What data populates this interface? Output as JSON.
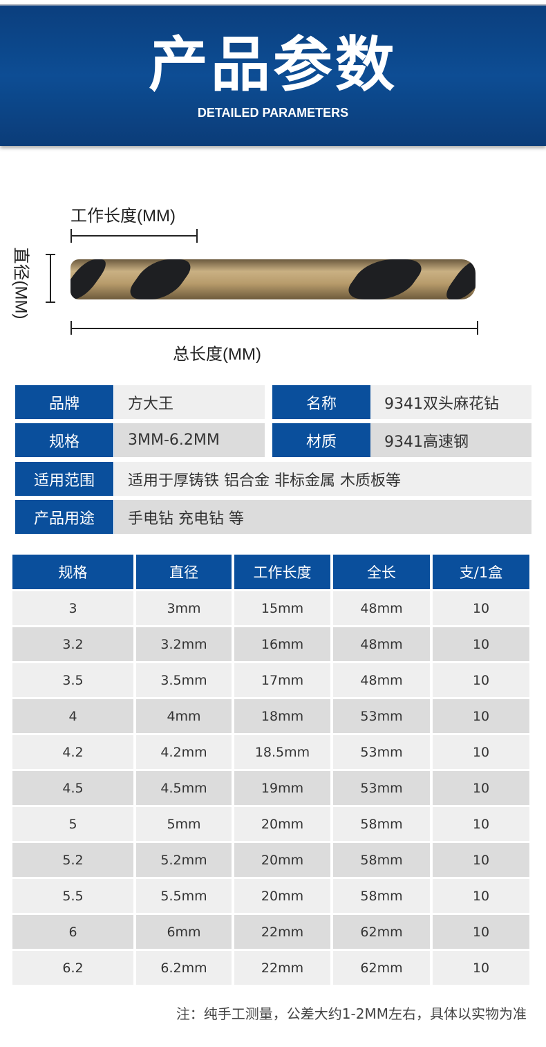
{
  "header": {
    "title": "产品参数",
    "subtitle": "DETAILED PARAMETERS"
  },
  "diagram": {
    "working_length": "工作长度(MM)",
    "diameter": "直径(MM)",
    "total_length": "总长度(MM)"
  },
  "params": [
    {
      "label": "品牌",
      "value": "方大王",
      "label2": "名称",
      "value2": "9341双头麻花钻"
    },
    {
      "label": "规格",
      "value": "3MM-6.2MM",
      "label2": "材质",
      "value2": "9341高速钢"
    },
    {
      "label": "适用范围",
      "value": "适用于厚铸铁 铝合金 非标金属 木质板等"
    },
    {
      "label": "产品用途",
      "value": "手电钻 充电钻 等"
    }
  ],
  "table": {
    "headers": [
      "规格",
      "直径",
      "工作长度",
      "全长",
      "支/1盒"
    ],
    "rows": [
      [
        "3",
        "3mm",
        "15mm",
        "48mm",
        "10"
      ],
      [
        "3.2",
        "3.2mm",
        "16mm",
        "48mm",
        "10"
      ],
      [
        "3.5",
        "3.5mm",
        "17mm",
        "48mm",
        "10"
      ],
      [
        "4",
        "4mm",
        "18mm",
        "53mm",
        "10"
      ],
      [
        "4.2",
        "4.2mm",
        "18.5mm",
        "53mm",
        "10"
      ],
      [
        "4.5",
        "4.5mm",
        "19mm",
        "53mm",
        "10"
      ],
      [
        "5",
        "5mm",
        "20mm",
        "58mm",
        "10"
      ],
      [
        "5.2",
        "5.2mm",
        "20mm",
        "58mm",
        "10"
      ],
      [
        "5.5",
        "5.5mm",
        "20mm",
        "58mm",
        "10"
      ],
      [
        "6",
        "6mm",
        "22mm",
        "62mm",
        "10"
      ],
      [
        "6.2",
        "6.2mm",
        "22mm",
        "62mm",
        "10"
      ]
    ]
  },
  "note": "注：纯手工测量，公差大约1-2MM左右，具体以实物为准",
  "colors": {
    "accent": "#0a4f9c",
    "row_light": "#efefef",
    "row_dark": "#dcdcdc"
  }
}
